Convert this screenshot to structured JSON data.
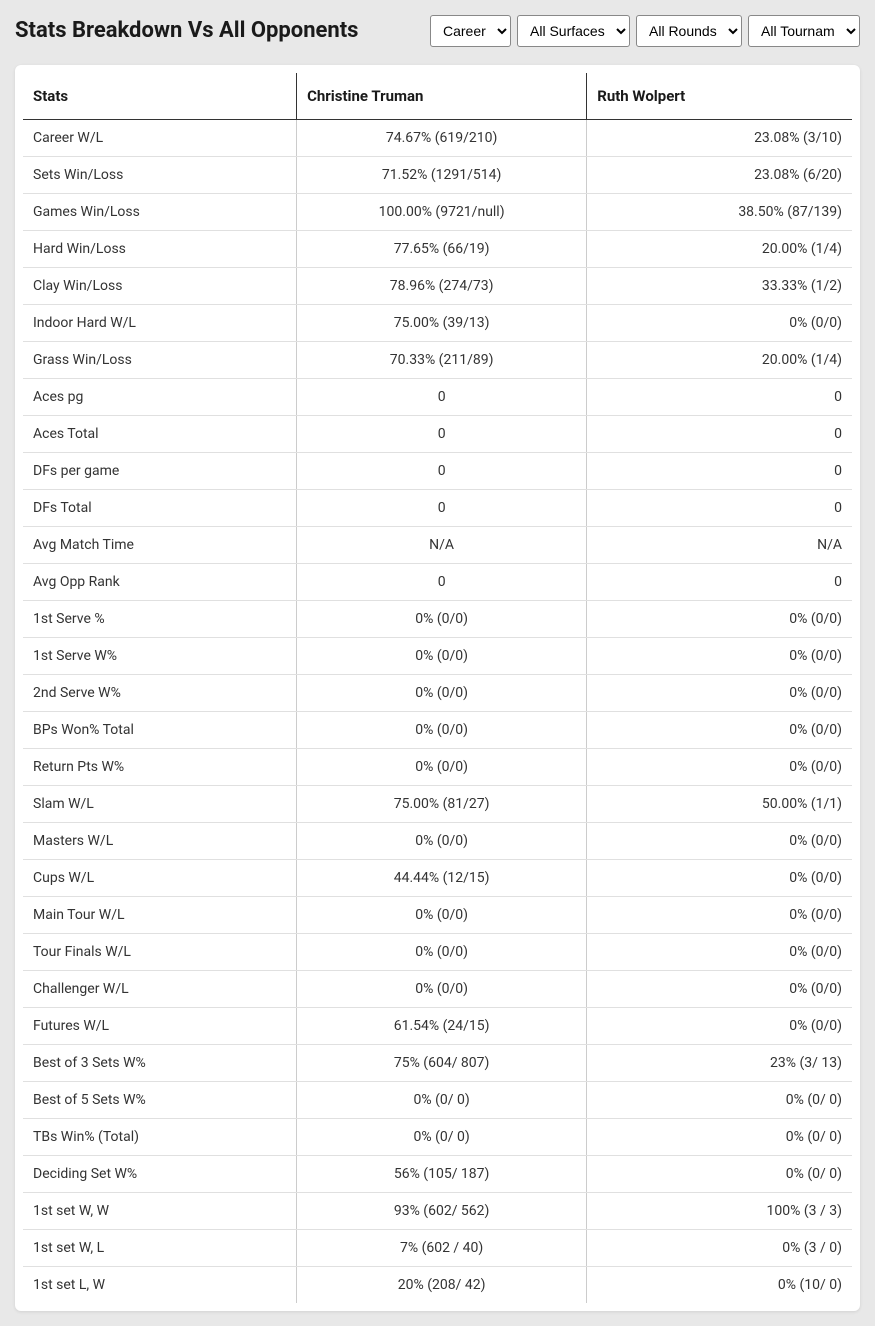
{
  "title": "Stats Breakdown Vs All Opponents",
  "filters": {
    "career": "Career",
    "surface": "All Surfaces",
    "rounds": "All Rounds",
    "tournaments": "All Tournam"
  },
  "columns": {
    "stats": "Stats",
    "player1": "Christine Truman",
    "player2": "Ruth Wolpert"
  },
  "rows": [
    {
      "stat": "Career W/L",
      "p1": "74.67% (619/210)",
      "p2": "23.08% (3/10)"
    },
    {
      "stat": "Sets Win/Loss",
      "p1": "71.52% (1291/514)",
      "p2": "23.08% (6/20)"
    },
    {
      "stat": "Games Win/Loss",
      "p1": "100.00% (9721/null)",
      "p2": "38.50% (87/139)"
    },
    {
      "stat": "Hard Win/Loss",
      "p1": "77.65% (66/19)",
      "p2": "20.00% (1/4)"
    },
    {
      "stat": "Clay Win/Loss",
      "p1": "78.96% (274/73)",
      "p2": "33.33% (1/2)"
    },
    {
      "stat": "Indoor Hard W/L",
      "p1": "75.00% (39/13)",
      "p2": "0% (0/0)"
    },
    {
      "stat": "Grass Win/Loss",
      "p1": "70.33% (211/89)",
      "p2": "20.00% (1/4)"
    },
    {
      "stat": "Aces pg",
      "p1": "0",
      "p2": "0"
    },
    {
      "stat": "Aces Total",
      "p1": "0",
      "p2": "0"
    },
    {
      "stat": "DFs per game",
      "p1": "0",
      "p2": "0"
    },
    {
      "stat": "DFs Total",
      "p1": "0",
      "p2": "0"
    },
    {
      "stat": "Avg Match Time",
      "p1": "N/A",
      "p2": "N/A"
    },
    {
      "stat": "Avg Opp Rank",
      "p1": "0",
      "p2": "0"
    },
    {
      "stat": "1st Serve %",
      "p1": "0% (0/0)",
      "p2": "0% (0/0)"
    },
    {
      "stat": "1st Serve W%",
      "p1": "0% (0/0)",
      "p2": "0% (0/0)"
    },
    {
      "stat": "2nd Serve W%",
      "p1": "0% (0/0)",
      "p2": "0% (0/0)"
    },
    {
      "stat": "BPs Won% Total",
      "p1": "0% (0/0)",
      "p2": "0% (0/0)"
    },
    {
      "stat": "Return Pts W%",
      "p1": "0% (0/0)",
      "p2": "0% (0/0)"
    },
    {
      "stat": "Slam W/L",
      "p1": "75.00% (81/27)",
      "p2": "50.00% (1/1)"
    },
    {
      "stat": "Masters W/L",
      "p1": "0% (0/0)",
      "p2": "0% (0/0)"
    },
    {
      "stat": "Cups W/L",
      "p1": "44.44% (12/15)",
      "p2": "0% (0/0)"
    },
    {
      "stat": "Main Tour W/L",
      "p1": "0% (0/0)",
      "p2": "0% (0/0)"
    },
    {
      "stat": "Tour Finals W/L",
      "p1": "0% (0/0)",
      "p2": "0% (0/0)"
    },
    {
      "stat": "Challenger W/L",
      "p1": "0% (0/0)",
      "p2": "0% (0/0)"
    },
    {
      "stat": "Futures W/L",
      "p1": "61.54% (24/15)",
      "p2": "0% (0/0)"
    },
    {
      "stat": "Best of 3 Sets W%",
      "p1": "75% (604/ 807)",
      "p2": "23% (3/ 13)"
    },
    {
      "stat": "Best of 5 Sets W%",
      "p1": "0% (0/ 0)",
      "p2": "0% (0/ 0)"
    },
    {
      "stat": "TBs Win% (Total)",
      "p1": "0% (0/ 0)",
      "p2": "0% (0/ 0)"
    },
    {
      "stat": "Deciding Set W%",
      "p1": "56% (105/ 187)",
      "p2": "0% (0/ 0)"
    },
    {
      "stat": "1st set W, W",
      "p1": "93% (602/ 562)",
      "p2": "100% (3 / 3)"
    },
    {
      "stat": "1st set W, L",
      "p1": "7% (602 / 40)",
      "p2": "0% (3 / 0)"
    },
    {
      "stat": "1st set L, W",
      "p1": "20% (208/ 42)",
      "p2": "0% (10/ 0)"
    }
  ]
}
